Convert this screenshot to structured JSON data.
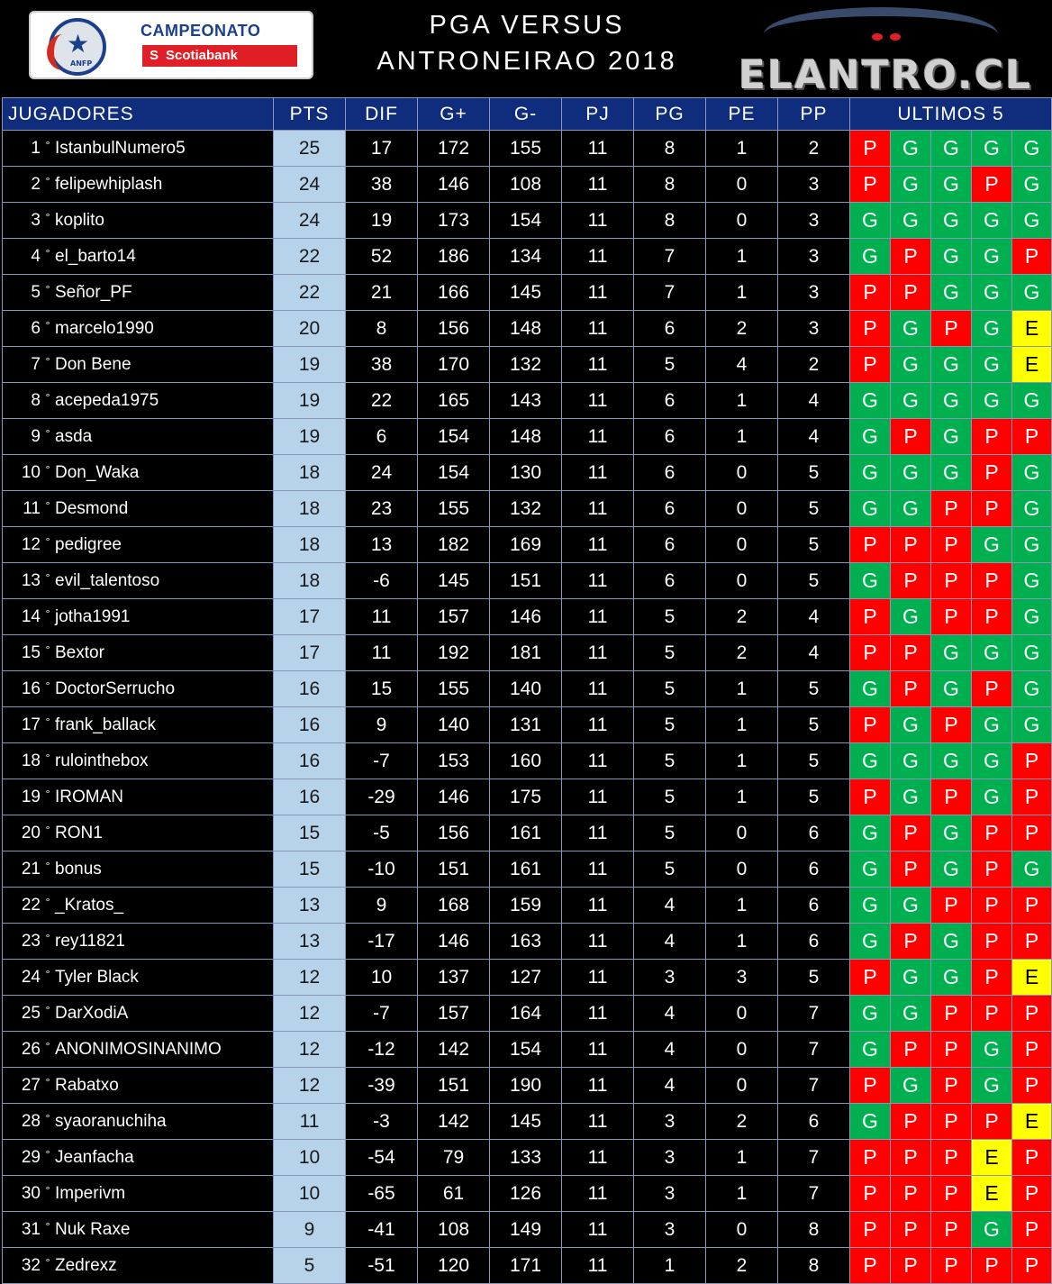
{
  "header": {
    "logo_left": {
      "line1": "CAMPEONATO",
      "line2": "Scotiabank",
      "badge": "ANFP"
    },
    "title_line1": "PGA  VERSUS",
    "title_line2": "ANTRONEIRAO  2018",
    "logo_right": "ELANTRO.CL"
  },
  "columns": [
    "JUGADORES",
    "PTS",
    "DIF",
    "G+",
    "G-",
    "PJ",
    "PG",
    "PE",
    "PP",
    "ULTIMOS  5"
  ],
  "colors": {
    "header_bg": "#0f2d7c",
    "pts_bg": "#b7d3ea",
    "G": "#00b050",
    "P": "#ff0000",
    "E": "#ffff00"
  },
  "rows": [
    {
      "pos": "1",
      "name": "IstanbulNumero5",
      "pts": "25",
      "dif": "17",
      "gf": "172",
      "ga": "155",
      "pj": "11",
      "pg": "8",
      "pe": "1",
      "pp": "2",
      "last5": [
        "P",
        "G",
        "G",
        "G",
        "G"
      ]
    },
    {
      "pos": "2",
      "name": "felipewhiplash",
      "pts": "24",
      "dif": "38",
      "gf": "146",
      "ga": "108",
      "pj": "11",
      "pg": "8",
      "pe": "0",
      "pp": "3",
      "last5": [
        "P",
        "G",
        "G",
        "P",
        "G"
      ]
    },
    {
      "pos": "3",
      "name": "koplito",
      "pts": "24",
      "dif": "19",
      "gf": "173",
      "ga": "154",
      "pj": "11",
      "pg": "8",
      "pe": "0",
      "pp": "3",
      "last5": [
        "G",
        "G",
        "G",
        "G",
        "G"
      ]
    },
    {
      "pos": "4",
      "name": "el_barto14",
      "pts": "22",
      "dif": "52",
      "gf": "186",
      "ga": "134",
      "pj": "11",
      "pg": "7",
      "pe": "1",
      "pp": "3",
      "last5": [
        "G",
        "P",
        "G",
        "G",
        "P"
      ]
    },
    {
      "pos": "5",
      "name": "Señor_PF",
      "pts": "22",
      "dif": "21",
      "gf": "166",
      "ga": "145",
      "pj": "11",
      "pg": "7",
      "pe": "1",
      "pp": "3",
      "last5": [
        "P",
        "P",
        "G",
        "G",
        "G"
      ]
    },
    {
      "pos": "6",
      "name": "marcelo1990",
      "pts": "20",
      "dif": "8",
      "gf": "156",
      "ga": "148",
      "pj": "11",
      "pg": "6",
      "pe": "2",
      "pp": "3",
      "last5": [
        "P",
        "G",
        "P",
        "G",
        "E"
      ]
    },
    {
      "pos": "7",
      "name": "Don Bene",
      "pts": "19",
      "dif": "38",
      "gf": "170",
      "ga": "132",
      "pj": "11",
      "pg": "5",
      "pe": "4",
      "pp": "2",
      "last5": [
        "P",
        "G",
        "G",
        "G",
        "E"
      ]
    },
    {
      "pos": "8",
      "name": "acepeda1975",
      "pts": "19",
      "dif": "22",
      "gf": "165",
      "ga": "143",
      "pj": "11",
      "pg": "6",
      "pe": "1",
      "pp": "4",
      "last5": [
        "G",
        "G",
        "G",
        "G",
        "G"
      ]
    },
    {
      "pos": "9",
      "name": "asda",
      "pts": "19",
      "dif": "6",
      "gf": "154",
      "ga": "148",
      "pj": "11",
      "pg": "6",
      "pe": "1",
      "pp": "4",
      "last5": [
        "G",
        "P",
        "G",
        "P",
        "P"
      ]
    },
    {
      "pos": "10",
      "name": "Don_Waka",
      "pts": "18",
      "dif": "24",
      "gf": "154",
      "ga": "130",
      "pj": "11",
      "pg": "6",
      "pe": "0",
      "pp": "5",
      "last5": [
        "G",
        "G",
        "G",
        "P",
        "G"
      ]
    },
    {
      "pos": "11",
      "name": "Desmond",
      "pts": "18",
      "dif": "23",
      "gf": "155",
      "ga": "132",
      "pj": "11",
      "pg": "6",
      "pe": "0",
      "pp": "5",
      "last5": [
        "G",
        "G",
        "P",
        "P",
        "G"
      ]
    },
    {
      "pos": "12",
      "name": "pedigree",
      "pts": "18",
      "dif": "13",
      "gf": "182",
      "ga": "169",
      "pj": "11",
      "pg": "6",
      "pe": "0",
      "pp": "5",
      "last5": [
        "P",
        "P",
        "P",
        "G",
        "G"
      ]
    },
    {
      "pos": "13",
      "name": "evil_talentoso",
      "pts": "18",
      "dif": "-6",
      "gf": "145",
      "ga": "151",
      "pj": "11",
      "pg": "6",
      "pe": "0",
      "pp": "5",
      "last5": [
        "G",
        "P",
        "P",
        "P",
        "G"
      ]
    },
    {
      "pos": "14",
      "name": "jotha1991",
      "pts": "17",
      "dif": "11",
      "gf": "157",
      "ga": "146",
      "pj": "11",
      "pg": "5",
      "pe": "2",
      "pp": "4",
      "last5": [
        "P",
        "G",
        "P",
        "P",
        "G"
      ]
    },
    {
      "pos": "15",
      "name": "Bextor",
      "pts": "17",
      "dif": "11",
      "gf": "192",
      "ga": "181",
      "pj": "11",
      "pg": "5",
      "pe": "2",
      "pp": "4",
      "last5": [
        "P",
        "P",
        "G",
        "G",
        "G"
      ]
    },
    {
      "pos": "16",
      "name": "DoctorSerrucho",
      "pts": "16",
      "dif": "15",
      "gf": "155",
      "ga": "140",
      "pj": "11",
      "pg": "5",
      "pe": "1",
      "pp": "5",
      "last5": [
        "G",
        "P",
        "G",
        "P",
        "G"
      ]
    },
    {
      "pos": "17",
      "name": "frank_ballack",
      "pts": "16",
      "dif": "9",
      "gf": "140",
      "ga": "131",
      "pj": "11",
      "pg": "5",
      "pe": "1",
      "pp": "5",
      "last5": [
        "P",
        "G",
        "P",
        "G",
        "G"
      ]
    },
    {
      "pos": "18",
      "name": "rulointhebox",
      "pts": "16",
      "dif": "-7",
      "gf": "153",
      "ga": "160",
      "pj": "11",
      "pg": "5",
      "pe": "1",
      "pp": "5",
      "last5": [
        "G",
        "G",
        "G",
        "G",
        "P"
      ]
    },
    {
      "pos": "19",
      "name": "IROMAN",
      "pts": "16",
      "dif": "-29",
      "gf": "146",
      "ga": "175",
      "pj": "11",
      "pg": "5",
      "pe": "1",
      "pp": "5",
      "last5": [
        "P",
        "G",
        "P",
        "G",
        "P"
      ]
    },
    {
      "pos": "20",
      "name": "RON1",
      "pts": "15",
      "dif": "-5",
      "gf": "156",
      "ga": "161",
      "pj": "11",
      "pg": "5",
      "pe": "0",
      "pp": "6",
      "last5": [
        "G",
        "P",
        "G",
        "P",
        "P"
      ]
    },
    {
      "pos": "21",
      "name": "bonus",
      "pts": "15",
      "dif": "-10",
      "gf": "151",
      "ga": "161",
      "pj": "11",
      "pg": "5",
      "pe": "0",
      "pp": "6",
      "last5": [
        "G",
        "P",
        "G",
        "P",
        "G"
      ]
    },
    {
      "pos": "22",
      "name": "_Kratos_",
      "pts": "13",
      "dif": "9",
      "gf": "168",
      "ga": "159",
      "pj": "11",
      "pg": "4",
      "pe": "1",
      "pp": "6",
      "last5": [
        "G",
        "G",
        "P",
        "P",
        "P"
      ]
    },
    {
      "pos": "23",
      "name": "rey11821",
      "pts": "13",
      "dif": "-17",
      "gf": "146",
      "ga": "163",
      "pj": "11",
      "pg": "4",
      "pe": "1",
      "pp": "6",
      "last5": [
        "G",
        "P",
        "G",
        "P",
        "P"
      ]
    },
    {
      "pos": "24",
      "name": "Tyler Black",
      "pts": "12",
      "dif": "10",
      "gf": "137",
      "ga": "127",
      "pj": "11",
      "pg": "3",
      "pe": "3",
      "pp": "5",
      "last5": [
        "P",
        "G",
        "G",
        "P",
        "E"
      ]
    },
    {
      "pos": "25",
      "name": "DarXodiA",
      "pts": "12",
      "dif": "-7",
      "gf": "157",
      "ga": "164",
      "pj": "11",
      "pg": "4",
      "pe": "0",
      "pp": "7",
      "last5": [
        "G",
        "G",
        "P",
        "P",
        "P"
      ]
    },
    {
      "pos": "26",
      "name": "ANONIMOSINANIMO",
      "pts": "12",
      "dif": "-12",
      "gf": "142",
      "ga": "154",
      "pj": "11",
      "pg": "4",
      "pe": "0",
      "pp": "7",
      "last5": [
        "G",
        "P",
        "P",
        "G",
        "P"
      ]
    },
    {
      "pos": "27",
      "name": "Rabatxo",
      "pts": "12",
      "dif": "-39",
      "gf": "151",
      "ga": "190",
      "pj": "11",
      "pg": "4",
      "pe": "0",
      "pp": "7",
      "last5": [
        "P",
        "G",
        "P",
        "G",
        "P"
      ]
    },
    {
      "pos": "28",
      "name": "syaoranuchiha",
      "pts": "11",
      "dif": "-3",
      "gf": "142",
      "ga": "145",
      "pj": "11",
      "pg": "3",
      "pe": "2",
      "pp": "6",
      "last5": [
        "G",
        "P",
        "P",
        "P",
        "E"
      ]
    },
    {
      "pos": "29",
      "name": "Jeanfacha",
      "pts": "10",
      "dif": "-54",
      "gf": "79",
      "ga": "133",
      "pj": "11",
      "pg": "3",
      "pe": "1",
      "pp": "7",
      "last5": [
        "P",
        "P",
        "P",
        "E",
        "P"
      ]
    },
    {
      "pos": "30",
      "name": "Imperivm",
      "pts": "10",
      "dif": "-65",
      "gf": "61",
      "ga": "126",
      "pj": "11",
      "pg": "3",
      "pe": "1",
      "pp": "7",
      "last5": [
        "P",
        "P",
        "P",
        "E",
        "P"
      ]
    },
    {
      "pos": "31",
      "name": "Nuk Raxe",
      "pts": "9",
      "dif": "-41",
      "gf": "108",
      "ga": "149",
      "pj": "11",
      "pg": "3",
      "pe": "0",
      "pp": "8",
      "last5": [
        "P",
        "P",
        "P",
        "G",
        "P"
      ]
    },
    {
      "pos": "32",
      "name": "Zedrexz",
      "pts": "5",
      "dif": "-51",
      "gf": "120",
      "ga": "171",
      "pj": "11",
      "pg": "1",
      "pe": "2",
      "pp": "8",
      "last5": [
        "P",
        "P",
        "P",
        "P",
        "P"
      ]
    }
  ]
}
